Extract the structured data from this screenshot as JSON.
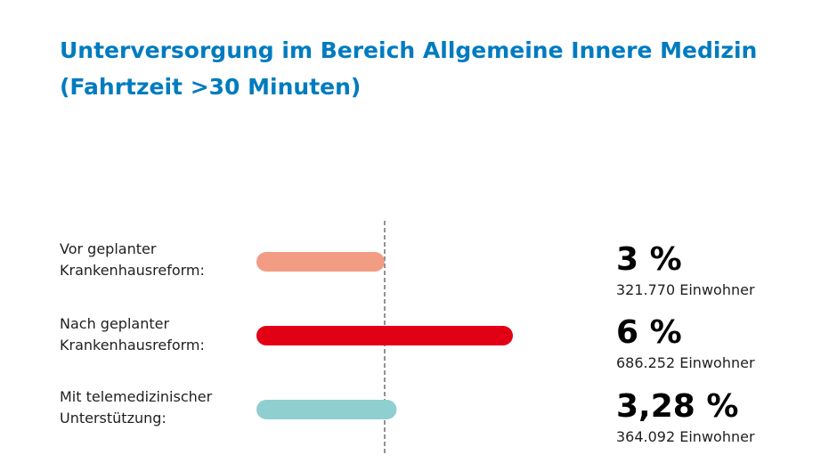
{
  "chart_data": {
    "type": "bar",
    "orientation": "horizontal",
    "title": "Unterversorgung im Bereich Allgemeine Innere Medizin",
    "subtitle": "(Fahrtzeit >30 Minuten)",
    "categories": [
      [
        "Vor geplanter",
        "Krankenhausreform:"
      ],
      [
        "Nach geplanter",
        "Krankenhausreform:"
      ],
      [
        "Mit telemedizinischer",
        "Unterstützung:"
      ]
    ],
    "values": [
      3,
      6,
      3.28
    ],
    "value_labels": [
      "3 %",
      "6 %",
      "3,28 %"
    ],
    "population_labels": [
      "321.770 Einwohner",
      "686.252 Einwohner",
      "364.092 Einwohner"
    ],
    "unit": "%",
    "reference_line": 3,
    "xlim": [
      0,
      6
    ],
    "colors": [
      "#f29d83",
      "#e20015",
      "#8fcfd0"
    ],
    "reference_line_color": "#6b6f73",
    "title_color": "#007bc0"
  }
}
